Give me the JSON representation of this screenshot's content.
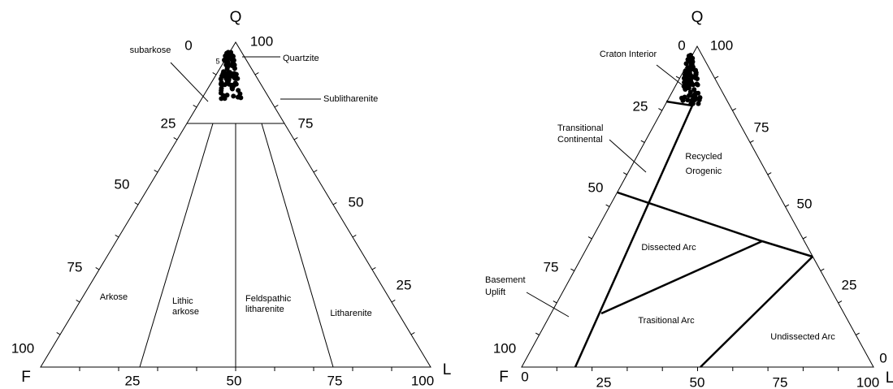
{
  "left": {
    "apices": {
      "top": "Q",
      "left": "F",
      "right": "L"
    },
    "left_ticks": [
      "0",
      "25",
      "50",
      "75",
      "100"
    ],
    "right_ticks": [
      "100",
      "75",
      "50",
      "25"
    ],
    "bottom_ticks": [
      "25",
      "50",
      "75",
      "100"
    ],
    "five": "5",
    "fields": {
      "subarkose": [
        "subarkose"
      ],
      "quartzite": [
        "Quartzite"
      ],
      "sublitharenite": [
        "Sublitharenite"
      ],
      "arkose": [
        "Arkose"
      ],
      "lithic_arkose": [
        "Lithic",
        "arkose"
      ],
      "feldspathic_litharenite": [
        "Feldspathic",
        "litharenite"
      ],
      "litharenite": [
        "Litharenite"
      ]
    }
  },
  "right": {
    "apices": {
      "top": "Q",
      "left": "F",
      "right": "L"
    },
    "left_ticks": [
      "0",
      "25",
      "50",
      "75",
      "100"
    ],
    "right_ticks": [
      "100",
      "75",
      "50",
      "25",
      "0"
    ],
    "bottom_ticks": [
      "0",
      "25",
      "50",
      "75",
      "100"
    ],
    "fields": {
      "craton_interior": [
        "Craton Interior"
      ],
      "transitional_continental": [
        "Transitional",
        "Continental"
      ],
      "recycled_orogenic": [
        "Recycled",
        "Orogenic"
      ],
      "dissected_arc": [
        "Dissected Arc"
      ],
      "basement_uplift": [
        "Basement",
        "Uplift"
      ],
      "transitional_arc": [
        "Trasitional Arc"
      ],
      "undissected_arc": [
        "Undissected Arc"
      ]
    }
  }
}
